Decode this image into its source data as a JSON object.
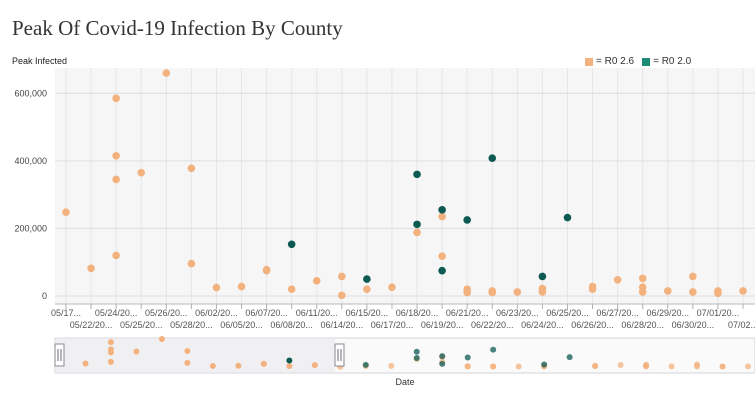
{
  "title": "Peak Of Covid-19 Infection By County",
  "legend": [
    {
      "label": "= R0 2.6",
      "color": "#f3b27d"
    },
    {
      "label": "= R0 2.0",
      "color": "#1f8a78"
    }
  ],
  "chart_data": {
    "type": "scatter",
    "title": "Peak Of Covid-19 Infection By County",
    "ylabel": "Peak Infected",
    "xlabel": "Date",
    "ylim": [
      0,
      660000
    ],
    "yticks": [
      0,
      200000,
      400000,
      600000
    ],
    "ytick_labels": [
      "0",
      "200,000",
      "400,000",
      "600,000"
    ],
    "grid": true,
    "legend_position": "top-right",
    "categories": [
      "05/17...",
      "05/22/20...",
      "05/24/20...",
      "05/25/20...",
      "05/26/20...",
      "05/28/20...",
      "06/02/20...",
      "06/05/20...",
      "06/07/20...",
      "06/08/20...",
      "06/11/20...",
      "06/14/20...",
      "06/15/20...",
      "06/17/20...",
      "06/18/20...",
      "06/19/20...",
      "06/21/20...",
      "06/22/20...",
      "06/23/20...",
      "06/24/20...",
      "06/25/20...",
      "06/26/20...",
      "06/27/20...",
      "06/28/20...",
      "06/29/20...",
      "06/30/20...",
      "07/01/20...",
      "07/02..."
    ],
    "series": [
      {
        "name": "R0 2.6",
        "color": "#f3b27d",
        "points": [
          [
            "05/17...",
            248000
          ],
          [
            "05/22/20...",
            82000
          ],
          [
            "05/24/20...",
            585000
          ],
          [
            "05/24/20...",
            415000
          ],
          [
            "05/24/20...",
            345000
          ],
          [
            "05/24/20...",
            120000
          ],
          [
            "05/25/20...",
            365000
          ],
          [
            "05/26/20...",
            660000
          ],
          [
            "05/28/20...",
            378000
          ],
          [
            "05/28/20...",
            96000
          ],
          [
            "06/02/20...",
            25000
          ],
          [
            "06/05/20...",
            28000
          ],
          [
            "06/07/20...",
            78000
          ],
          [
            "06/07/20...",
            75000
          ],
          [
            "06/08/20...",
            20000
          ],
          [
            "06/11/20...",
            45000
          ],
          [
            "06/14/20...",
            58000
          ],
          [
            "06/14/20...",
            2000
          ],
          [
            "06/15/20...",
            20000
          ],
          [
            "06/17/20...",
            26000
          ],
          [
            "06/18/20...",
            188000
          ],
          [
            "06/19/20...",
            235000
          ],
          [
            "06/19/20...",
            118000
          ],
          [
            "06/21/20...",
            20000
          ],
          [
            "06/21/20...",
            10000
          ],
          [
            "06/22/20...",
            15000
          ],
          [
            "06/22/20...",
            10000
          ],
          [
            "06/23/20...",
            12000
          ],
          [
            "06/24/20...",
            22000
          ],
          [
            "06/24/20...",
            12000
          ],
          [
            "06/26/20...",
            28000
          ],
          [
            "06/26/20...",
            20000
          ],
          [
            "06/27/20...",
            48000
          ],
          [
            "06/28/20...",
            52000
          ],
          [
            "06/28/20...",
            26000
          ],
          [
            "06/28/20...",
            12000
          ],
          [
            "06/29/20...",
            15000
          ],
          [
            "06/30/20...",
            58000
          ],
          [
            "06/30/20...",
            12000
          ],
          [
            "07/01/20...",
            15000
          ],
          [
            "07/01/20...",
            8000
          ],
          [
            "07/02...",
            15000
          ]
        ]
      },
      {
        "name": "R0 2.0",
        "color": "#1f8a78",
        "points": [
          [
            "06/08/20...",
            153000
          ],
          [
            "06/15/20...",
            50000
          ],
          [
            "06/18/20...",
            360000
          ],
          [
            "06/18/20...",
            212000
          ],
          [
            "06/19/20...",
            255000
          ],
          [
            "06/19/20...",
            75000
          ],
          [
            "06/21/20...",
            225000
          ],
          [
            "06/22/20...",
            408000
          ],
          [
            "06/24/20...",
            58000
          ],
          [
            "06/25/20...",
            232000
          ]
        ]
      }
    ]
  }
}
